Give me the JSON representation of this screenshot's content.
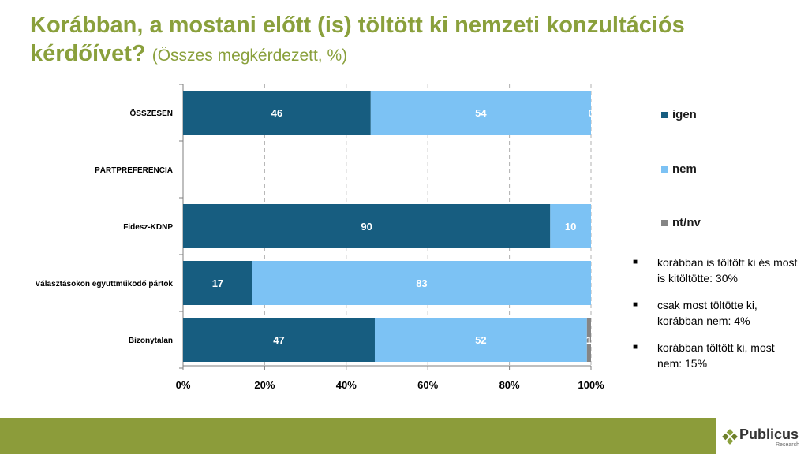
{
  "title": {
    "main": "Korábban, a mostani előtt (is) töltött ki nemzeti konzultációs kérdőívet?",
    "sub": "(Összes megkérdezett, %)"
  },
  "colors": {
    "igen": "#175d80",
    "nem": "#7cc2f4",
    "ntnv": "#858585",
    "brand": "#8aa03c",
    "footer": "#8c9c3a"
  },
  "chart_data": {
    "type": "bar",
    "orientation": "horizontal",
    "stacked": true,
    "categories": [
      "ÖSSZESEN",
      "PÁRTPREFERENCIA",
      "Fidesz-KDNP",
      "Választásokon együttműködő pártok",
      "Bizonytalan"
    ],
    "series": [
      {
        "name": "igen",
        "values": [
          46,
          null,
          90,
          17,
          47
        ],
        "labels": [
          "46",
          "",
          "90",
          "17",
          "47"
        ]
      },
      {
        "name": "nem",
        "values": [
          54,
          null,
          10,
          83,
          52
        ],
        "labels": [
          "54",
          "",
          "10",
          "83",
          "52"
        ]
      },
      {
        "name": "nt/nv",
        "values": [
          0,
          null,
          0,
          0,
          1
        ],
        "labels": [
          "0",
          "",
          "",
          "",
          "1"
        ]
      }
    ],
    "xlim": [
      0,
      100
    ],
    "xticks": [
      "0%",
      "20%",
      "40%",
      "60%",
      "80%",
      "100%"
    ],
    "grid": true,
    "legend_position": "right"
  },
  "legend": [
    {
      "label": "igen",
      "color": "#175d80"
    },
    {
      "label": "nem",
      "color": "#7cc2f4"
    },
    {
      "label": "nt/nv",
      "color": "#858585"
    }
  ],
  "notes": [
    "korábban is töltött ki és most is kitöltötte: 30%",
    "csak most töltötte ki, korábban nem: 4%",
    "korábban töltött ki, most nem: 15%"
  ],
  "logo": {
    "name": "Publicus",
    "sub": "Research",
    "icon": "publicus-diamond-logo-icon"
  }
}
